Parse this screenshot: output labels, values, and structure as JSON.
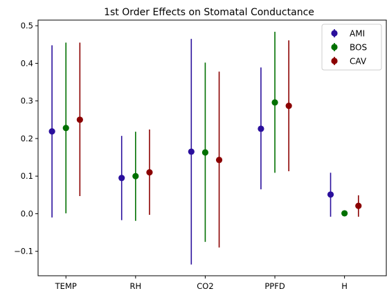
{
  "chart_data": {
    "type": "errorbar",
    "title": "1st Order Effects on Stomatal Conductance",
    "xlabel": "",
    "ylabel": "",
    "categories": [
      "TEMP",
      "RH",
      "CO2",
      "PPFD",
      "H"
    ],
    "ylim": [
      -0.165,
      0.515
    ],
    "yticks": [
      -0.1,
      0.0,
      0.1,
      0.2,
      0.3,
      0.4,
      0.5
    ],
    "ytick_labels": [
      "−0.1",
      "0.0",
      "0.1",
      "0.2",
      "0.3",
      "0.4",
      "0.5"
    ],
    "grid": false,
    "legend_position": "top-right",
    "series": [
      {
        "name": "AMI",
        "color": "#2a0f9c",
        "values": [
          0.219,
          0.095,
          0.165,
          0.226,
          0.051
        ],
        "lower": [
          -0.01,
          -0.017,
          -0.135,
          0.065,
          -0.008
        ],
        "upper": [
          0.448,
          0.207,
          0.465,
          0.389,
          0.109
        ]
      },
      {
        "name": "BOS",
        "color": "#007000",
        "values": [
          0.228,
          0.1,
          0.163,
          0.296,
          0.001
        ],
        "lower": [
          0.001,
          -0.019,
          -0.075,
          0.109,
          0.001
        ],
        "upper": [
          0.455,
          0.218,
          0.402,
          0.484,
          0.001
        ]
      },
      {
        "name": "CAV",
        "color": "#8b0000",
        "values": [
          0.25,
          0.11,
          0.143,
          0.287,
          0.021
        ],
        "lower": [
          0.047,
          -0.003,
          -0.09,
          0.113,
          -0.008
        ],
        "upper": [
          0.455,
          0.224,
          0.378,
          0.461,
          0.049
        ]
      }
    ]
  }
}
